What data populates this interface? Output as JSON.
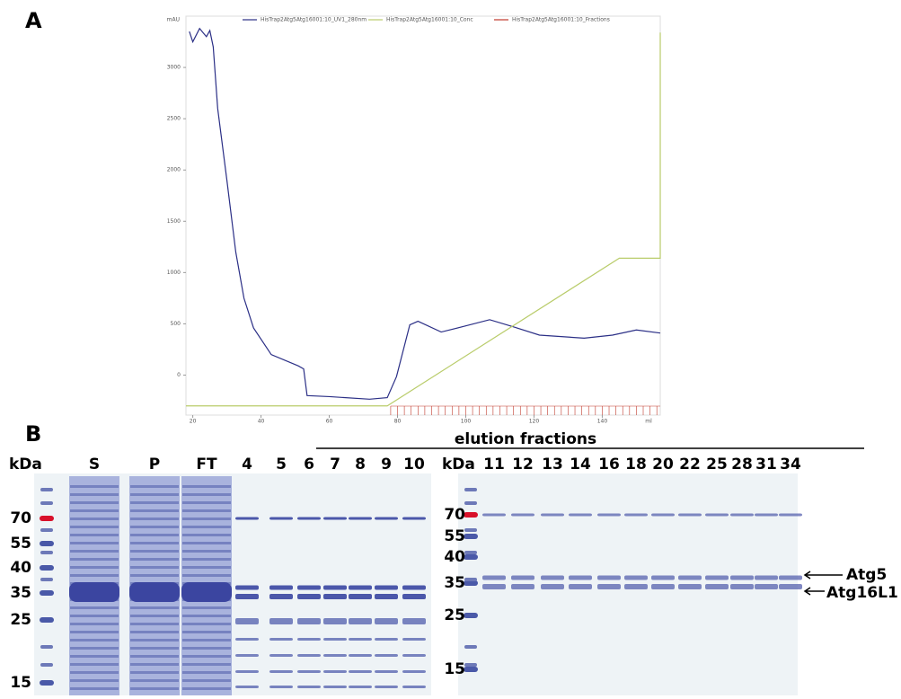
{
  "chart_data": {
    "type": "line",
    "xlabel": "ml",
    "ylabel": "mAU",
    "xlim": [
      18,
      157
    ],
    "ylim": [
      -390,
      3500
    ],
    "xticks": [
      20,
      40,
      60,
      80,
      100,
      120,
      140
    ],
    "yticks": [
      0,
      500,
      1000,
      1500,
      2000,
      2500,
      3000
    ],
    "series": [
      {
        "name": "HisTrap2Atg5Atg16001:10_UV1_280nm",
        "color": "#2b2f86",
        "x": [
          19,
          20,
          22,
          24,
          25,
          26,
          27.3,
          30,
          32.6,
          35,
          37.8,
          43,
          50.9,
          52.5,
          53.5,
          60,
          71.8,
          77,
          79.7,
          83.6,
          86,
          92.8,
          100,
          107,
          114,
          121.6,
          134.7,
          143,
          150,
          157
        ],
        "values": [
          3350,
          3250,
          3380,
          3300,
          3360,
          3200,
          2600,
          1900,
          1200,
          750,
          460,
          200,
          90,
          60,
          -200,
          -210,
          -235,
          -220,
          -15,
          490,
          525,
          420,
          480,
          540,
          470,
          390,
          360,
          390,
          440,
          410
        ]
      },
      {
        "name": "HisTrap2Atg5Atg16001:10_Conc",
        "color": "#b9cc6a",
        "x": [
          18,
          77,
          145,
          157,
          157
        ],
        "values": [
          -300,
          -300,
          1140,
          1140,
          3340
        ]
      },
      {
        "name": "HisTrap2Atg5Atg16001:10_Fractions",
        "color": "#c0392b",
        "x": [
          78,
          80,
          82,
          84,
          86,
          88,
          90,
          92,
          94,
          96,
          98,
          100,
          102,
          104,
          106,
          108,
          110,
          112,
          114,
          116,
          118,
          120,
          122,
          124,
          126,
          128,
          130,
          132,
          134,
          136,
          138,
          140,
          142,
          144,
          146,
          148,
          150,
          152,
          154,
          156
        ]
      }
    ]
  },
  "figure": {
    "panel_a": "A",
    "panel_b": "B",
    "elution_header": "elution fractions",
    "left_gel": {
      "unit": "kDa",
      "lanes": [
        "S",
        "P",
        "FT",
        "4",
        "5",
        "6",
        "7",
        "8",
        "9",
        "10"
      ],
      "markers": [
        "70",
        "55",
        "40",
        "35",
        "25",
        "15"
      ]
    },
    "right_gel": {
      "unit": "kDa",
      "lanes": [
        "11",
        "12",
        "13",
        "14",
        "16",
        "18",
        "20",
        "22",
        "25",
        "28",
        "31",
        "34"
      ],
      "markers": [
        "70",
        "55",
        "40",
        "35",
        "25",
        "15"
      ]
    },
    "proteins": [
      "Atg5",
      "Atg16L1"
    ]
  }
}
